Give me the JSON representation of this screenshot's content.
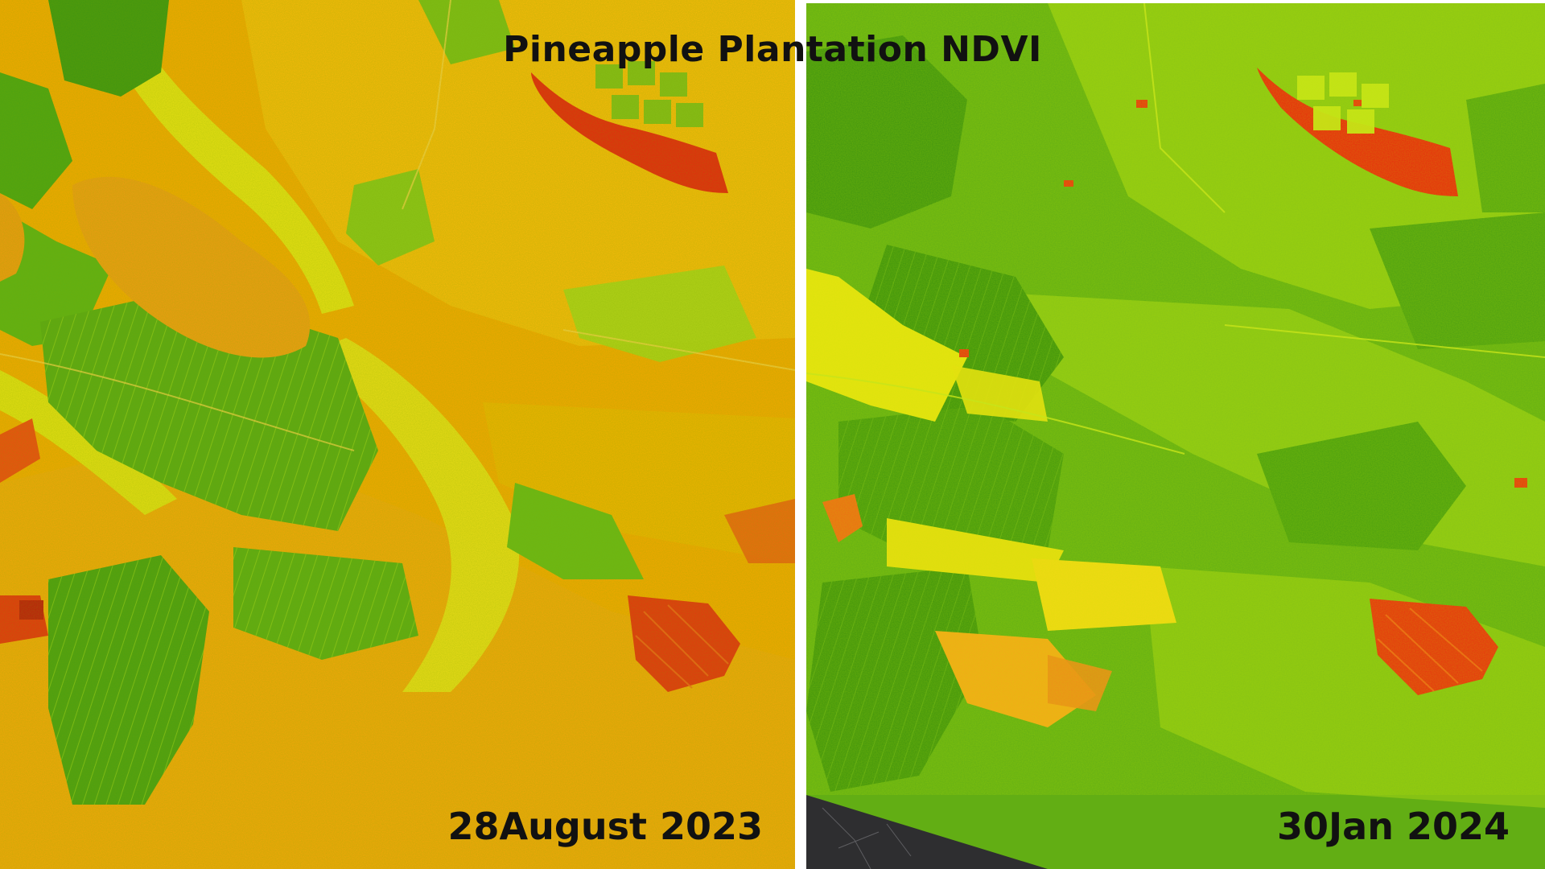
{
  "title": "Pineapple Plantation NDVI",
  "panels": [
    {
      "date_label": "28August 2023"
    },
    {
      "date_label": "30Jan 2024"
    }
  ],
  "colors": {
    "ndvi_high": "#3f9a0e",
    "ndvi_mid_high": "#7cc414",
    "ndvi_mid": "#d8ec12",
    "ndvi_low": "#f5c400",
    "ndvi_lower": "#f59c00",
    "ndvi_lowest": "#ee2a10",
    "nodata": "#2e2e30",
    "divider": "#ffffff"
  }
}
